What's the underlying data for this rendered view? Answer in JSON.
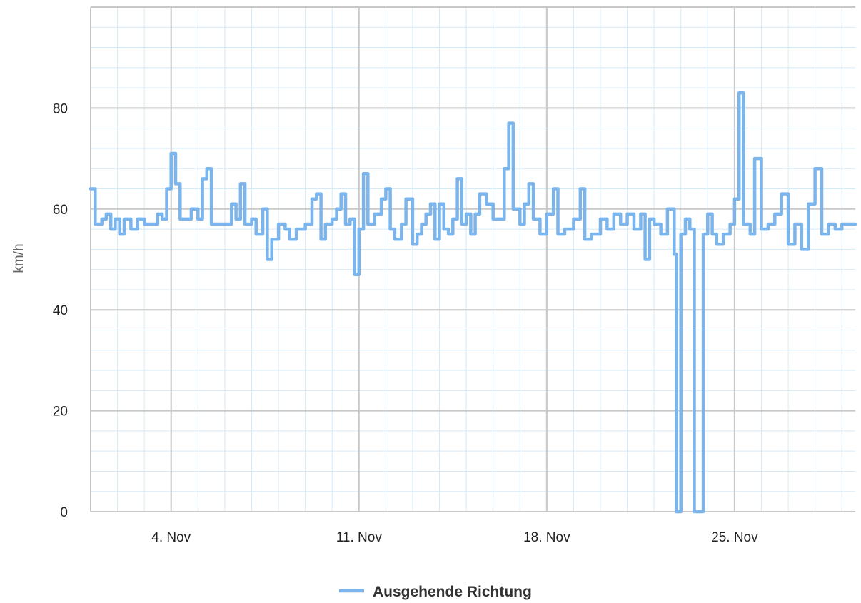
{
  "chart_data": {
    "type": "line",
    "title": "",
    "xlabel": "",
    "ylabel": "km/h",
    "ylim": [
      0,
      100
    ],
    "y_ticks": [
      0,
      20,
      40,
      60,
      80
    ],
    "x_range": [
      "2018-11-01",
      "2018-11-29T12:00"
    ],
    "x_ticks": [
      {
        "date": "2018-11-04",
        "label": "4. Nov"
      },
      {
        "date": "2018-11-11",
        "label": "11. Nov"
      },
      {
        "date": "2018-11-18",
        "label": "18. Nov"
      },
      {
        "date": "2018-11-25",
        "label": "25. Nov"
      }
    ],
    "grid": true,
    "legend_position": "bottom-center",
    "colors": {
      "series": "#7cb5ec",
      "grid_major": "#c8c8c8",
      "grid_minor": "#d5eaf7"
    },
    "series": [
      {
        "name": "Ausgehende Richtung",
        "points": [
          [
            "2018-11-01T00:00",
            64
          ],
          [
            "2018-11-01T04:00",
            57
          ],
          [
            "2018-11-01T10:00",
            58
          ],
          [
            "2018-11-01T14:00",
            59
          ],
          [
            "2018-11-01T18:00",
            56
          ],
          [
            "2018-11-01T22:00",
            58
          ],
          [
            "2018-11-02T02:00",
            55
          ],
          [
            "2018-11-02T06:00",
            58
          ],
          [
            "2018-11-02T12:00",
            56
          ],
          [
            "2018-11-02T18:00",
            58
          ],
          [
            "2018-11-03T00:00",
            57
          ],
          [
            "2018-11-03T06:00",
            57
          ],
          [
            "2018-11-03T12:00",
            59
          ],
          [
            "2018-11-03T16:00",
            58
          ],
          [
            "2018-11-03T20:00",
            64
          ],
          [
            "2018-11-04T00:00",
            71
          ],
          [
            "2018-11-04T04:00",
            65
          ],
          [
            "2018-11-04T08:00",
            58
          ],
          [
            "2018-11-04T14:00",
            58
          ],
          [
            "2018-11-04T18:00",
            60
          ],
          [
            "2018-11-05T00:00",
            58
          ],
          [
            "2018-11-05T04:00",
            66
          ],
          [
            "2018-11-05T08:00",
            68
          ],
          [
            "2018-11-05T12:00",
            57
          ],
          [
            "2018-11-05T18:00",
            57
          ],
          [
            "2018-11-06T00:00",
            57
          ],
          [
            "2018-11-06T06:00",
            61
          ],
          [
            "2018-11-06T10:00",
            58
          ],
          [
            "2018-11-06T14:00",
            65
          ],
          [
            "2018-11-06T18:00",
            57
          ],
          [
            "2018-11-07T00:00",
            58
          ],
          [
            "2018-11-07T04:00",
            55
          ],
          [
            "2018-11-07T10:00",
            60
          ],
          [
            "2018-11-07T14:00",
            50
          ],
          [
            "2018-11-07T18:00",
            54
          ],
          [
            "2018-11-08T00:00",
            57
          ],
          [
            "2018-11-08T06:00",
            56
          ],
          [
            "2018-11-08T10:00",
            54
          ],
          [
            "2018-11-08T16:00",
            56
          ],
          [
            "2018-11-09T00:00",
            57
          ],
          [
            "2018-11-09T06:00",
            62
          ],
          [
            "2018-11-09T10:00",
            63
          ],
          [
            "2018-11-09T14:00",
            54
          ],
          [
            "2018-11-09T18:00",
            57
          ],
          [
            "2018-11-10T00:00",
            58
          ],
          [
            "2018-11-10T04:00",
            60
          ],
          [
            "2018-11-10T08:00",
            63
          ],
          [
            "2018-11-10T12:00",
            57
          ],
          [
            "2018-11-10T16:00",
            58
          ],
          [
            "2018-11-10T20:00",
            47
          ],
          [
            "2018-11-11T00:00",
            56
          ],
          [
            "2018-11-11T04:00",
            67
          ],
          [
            "2018-11-11T08:00",
            57
          ],
          [
            "2018-11-11T14:00",
            59
          ],
          [
            "2018-11-11T20:00",
            62
          ],
          [
            "2018-11-12T00:00",
            64
          ],
          [
            "2018-11-12T04:00",
            56
          ],
          [
            "2018-11-12T08:00",
            54
          ],
          [
            "2018-11-12T14:00",
            57
          ],
          [
            "2018-11-12T18:00",
            62
          ],
          [
            "2018-11-13T00:00",
            53
          ],
          [
            "2018-11-13T04:00",
            55
          ],
          [
            "2018-11-13T08:00",
            57
          ],
          [
            "2018-11-13T12:00",
            59
          ],
          [
            "2018-11-13T16:00",
            61
          ],
          [
            "2018-11-13T20:00",
            54
          ],
          [
            "2018-11-14T00:00",
            61
          ],
          [
            "2018-11-14T04:00",
            56
          ],
          [
            "2018-11-14T08:00",
            55
          ],
          [
            "2018-11-14T12:00",
            58
          ],
          [
            "2018-11-14T16:00",
            66
          ],
          [
            "2018-11-14T20:00",
            57
          ],
          [
            "2018-11-15T00:00",
            59
          ],
          [
            "2018-11-15T04:00",
            55
          ],
          [
            "2018-11-15T08:00",
            59
          ],
          [
            "2018-11-15T12:00",
            63
          ],
          [
            "2018-11-15T18:00",
            61
          ],
          [
            "2018-11-16T00:00",
            58
          ],
          [
            "2018-11-16T06:00",
            58
          ],
          [
            "2018-11-16T10:00",
            68
          ],
          [
            "2018-11-16T14:00",
            77
          ],
          [
            "2018-11-16T18:00",
            60
          ],
          [
            "2018-11-17T00:00",
            57
          ],
          [
            "2018-11-17T04:00",
            61
          ],
          [
            "2018-11-17T08:00",
            65
          ],
          [
            "2018-11-17T12:00",
            58
          ],
          [
            "2018-11-17T18:00",
            55
          ],
          [
            "2018-11-18T00:00",
            59
          ],
          [
            "2018-11-18T06:00",
            64
          ],
          [
            "2018-11-18T10:00",
            55
          ],
          [
            "2018-11-18T16:00",
            56
          ],
          [
            "2018-11-19T00:00",
            58
          ],
          [
            "2018-11-19T06:00",
            64
          ],
          [
            "2018-11-19T10:00",
            54
          ],
          [
            "2018-11-19T16:00",
            55
          ],
          [
            "2018-11-20T00:00",
            58
          ],
          [
            "2018-11-20T06:00",
            56
          ],
          [
            "2018-11-20T12:00",
            59
          ],
          [
            "2018-11-20T18:00",
            57
          ],
          [
            "2018-11-21T00:00",
            59
          ],
          [
            "2018-11-21T06:00",
            56
          ],
          [
            "2018-11-21T12:00",
            59
          ],
          [
            "2018-11-21T16:00",
            50
          ],
          [
            "2018-11-21T20:00",
            58
          ],
          [
            "2018-11-22T00:00",
            57
          ],
          [
            "2018-11-22T06:00",
            55
          ],
          [
            "2018-11-22T12:00",
            60
          ],
          [
            "2018-11-22T18:00",
            51
          ],
          [
            "2018-11-22T20:00",
            0
          ],
          [
            "2018-11-23T00:00",
            55
          ],
          [
            "2018-11-23T04:00",
            58
          ],
          [
            "2018-11-23T08:00",
            56
          ],
          [
            "2018-11-23T12:00",
            0
          ],
          [
            "2018-11-23T20:00",
            55
          ],
          [
            "2018-11-24T00:00",
            59
          ],
          [
            "2018-11-24T04:00",
            55
          ],
          [
            "2018-11-24T08:00",
            53
          ],
          [
            "2018-11-24T14:00",
            55
          ],
          [
            "2018-11-24T20:00",
            57
          ],
          [
            "2018-11-25T00:00",
            62
          ],
          [
            "2018-11-25T04:00",
            83
          ],
          [
            "2018-11-25T08:00",
            57
          ],
          [
            "2018-11-25T14:00",
            55
          ],
          [
            "2018-11-25T18:00",
            70
          ],
          [
            "2018-11-26T00:00",
            56
          ],
          [
            "2018-11-26T06:00",
            57
          ],
          [
            "2018-11-26T12:00",
            59
          ],
          [
            "2018-11-26T18:00",
            63
          ],
          [
            "2018-11-27T00:00",
            53
          ],
          [
            "2018-11-27T06:00",
            57
          ],
          [
            "2018-11-27T12:00",
            52
          ],
          [
            "2018-11-27T18:00",
            61
          ],
          [
            "2018-11-28T00:00",
            68
          ],
          [
            "2018-11-28T06:00",
            55
          ],
          [
            "2018-11-28T12:00",
            57
          ],
          [
            "2018-11-28T18:00",
            56
          ],
          [
            "2018-11-29T00:00",
            57
          ]
        ]
      }
    ]
  }
}
